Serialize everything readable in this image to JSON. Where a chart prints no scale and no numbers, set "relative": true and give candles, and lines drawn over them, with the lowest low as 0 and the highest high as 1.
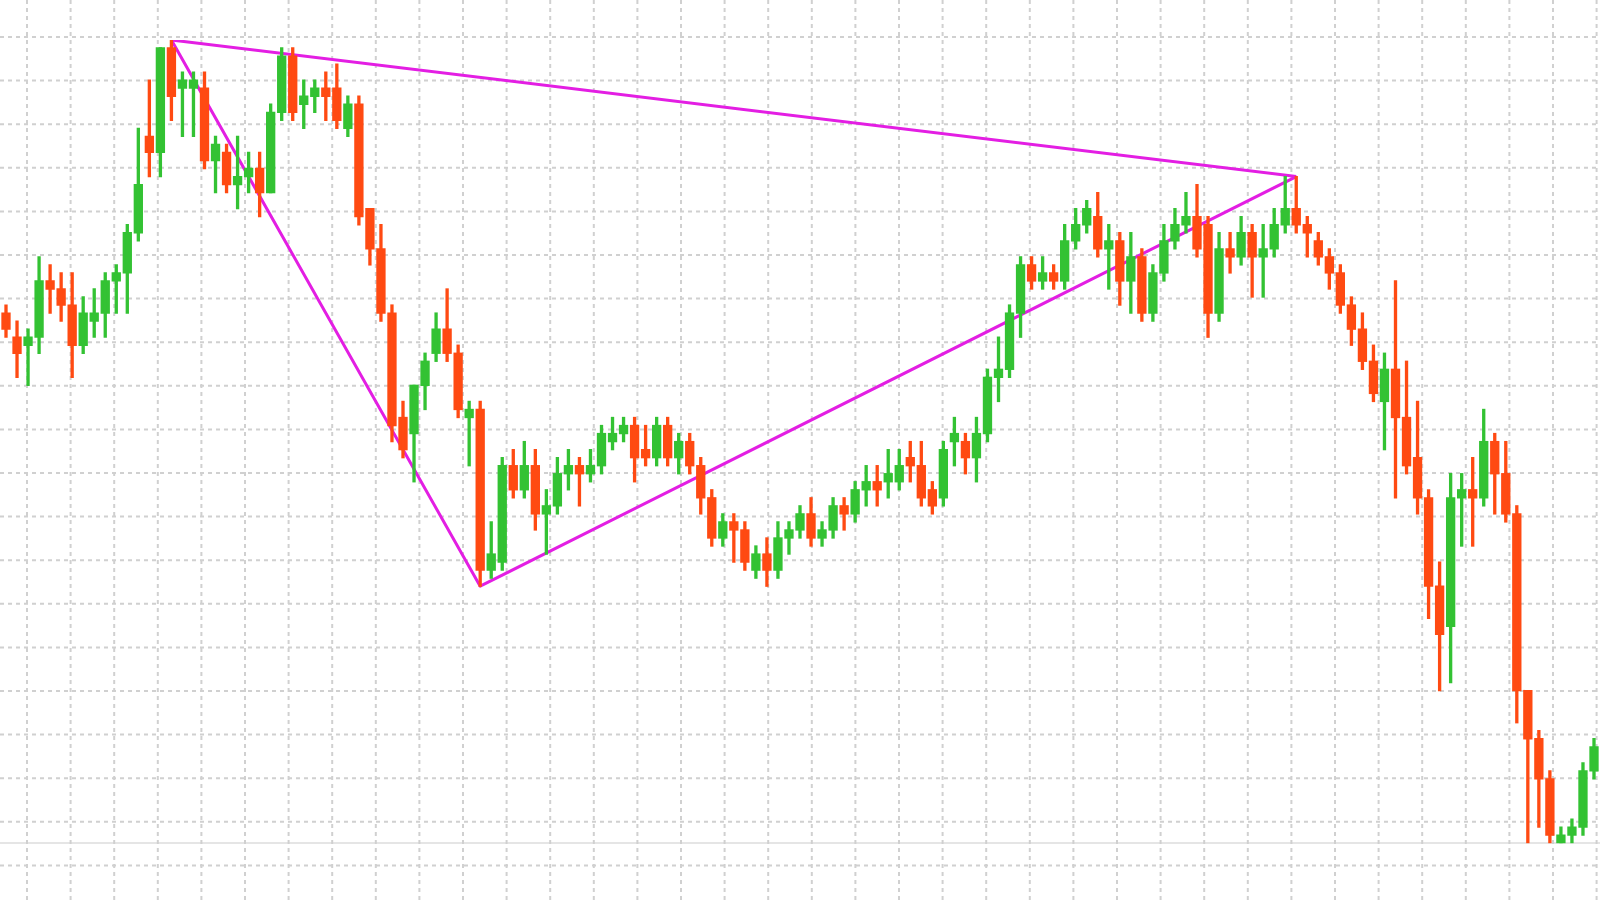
{
  "chart_data": {
    "type": "candlestick",
    "relative": true,
    "grid": true,
    "categories": [
      null,
      null,
      null,
      null,
      null,
      null,
      null,
      null,
      null,
      null,
      null,
      null,
      null,
      null,
      null,
      null,
      null,
      null,
      null,
      null,
      null,
      null,
      null,
      null,
      null,
      null,
      null,
      null,
      null,
      null,
      null,
      null,
      null,
      null,
      null,
      null,
      null,
      null,
      null,
      null,
      null,
      null,
      null,
      null,
      null,
      null,
      null,
      null,
      null,
      null,
      null,
      null,
      null,
      null,
      null,
      null,
      null,
      null,
      null,
      null,
      null,
      null,
      null,
      null,
      null,
      null,
      null,
      null,
      null,
      null,
      null,
      null,
      null,
      null,
      null,
      null,
      null,
      null,
      null,
      null,
      null,
      null,
      null,
      null,
      null,
      null,
      null,
      null,
      null,
      null,
      null,
      null,
      null,
      null,
      null,
      null,
      null,
      null,
      null,
      null,
      null,
      null,
      null,
      null,
      null,
      null,
      null,
      null,
      null,
      null,
      null,
      null,
      null,
      null,
      null,
      null,
      null,
      null,
      null,
      null,
      null,
      null,
      null,
      null,
      null,
      null,
      null,
      null,
      null,
      null,
      null,
      null,
      null,
      null,
      null,
      null,
      null,
      null,
      null,
      null,
      null,
      null,
      null,
      null,
      null
    ],
    "series": [
      {
        "type": "candlestick",
        "ohlc": [
          [
            0.66,
            0.67,
            0.63,
            0.64
          ],
          [
            0.63,
            0.65,
            0.58,
            0.61
          ],
          [
            0.62,
            0.64,
            0.57,
            0.63
          ],
          [
            0.63,
            0.73,
            0.61,
            0.7
          ],
          [
            0.7,
            0.72,
            0.66,
            0.69
          ],
          [
            0.69,
            0.71,
            0.65,
            0.67
          ],
          [
            0.67,
            0.71,
            0.58,
            0.62
          ],
          [
            0.62,
            0.68,
            0.61,
            0.66
          ],
          [
            0.65,
            0.69,
            0.63,
            0.66
          ],
          [
            0.66,
            0.71,
            0.63,
            0.7
          ],
          [
            0.7,
            0.72,
            0.66,
            0.71
          ],
          [
            0.71,
            0.77,
            0.66,
            0.76
          ],
          [
            0.76,
            0.89,
            0.75,
            0.82
          ],
          [
            0.88,
            0.95,
            0.83,
            0.86
          ],
          [
            0.86,
            0.99,
            0.83,
            0.99
          ],
          [
            0.99,
            1.0,
            0.9,
            0.93
          ],
          [
            0.94,
            0.96,
            0.88,
            0.95
          ],
          [
            0.94,
            0.96,
            0.88,
            0.95
          ],
          [
            0.94,
            0.96,
            0.84,
            0.85
          ],
          [
            0.85,
            0.88,
            0.81,
            0.87
          ],
          [
            0.86,
            0.87,
            0.81,
            0.82
          ],
          [
            0.82,
            0.88,
            0.79,
            0.83
          ],
          [
            0.83,
            0.86,
            0.81,
            0.84
          ],
          [
            0.84,
            0.86,
            0.78,
            0.81
          ],
          [
            0.81,
            0.92,
            0.81,
            0.91
          ],
          [
            0.91,
            0.99,
            0.9,
            0.98
          ],
          [
            0.98,
            0.99,
            0.9,
            0.91
          ],
          [
            0.92,
            0.95,
            0.89,
            0.93
          ],
          [
            0.93,
            0.95,
            0.91,
            0.94
          ],
          [
            0.94,
            0.96,
            0.9,
            0.93
          ],
          [
            0.94,
            0.97,
            0.89,
            0.9
          ],
          [
            0.89,
            0.93,
            0.88,
            0.92
          ],
          [
            0.92,
            0.93,
            0.77,
            0.78
          ],
          [
            0.79,
            0.79,
            0.72,
            0.74
          ],
          [
            0.74,
            0.77,
            0.65,
            0.66
          ],
          [
            0.66,
            0.67,
            0.5,
            0.52
          ],
          [
            0.53,
            0.55,
            0.48,
            0.49
          ],
          [
            0.51,
            0.57,
            0.45,
            0.57
          ],
          [
            0.57,
            0.61,
            0.54,
            0.6
          ],
          [
            0.61,
            0.66,
            0.6,
            0.64
          ],
          [
            0.64,
            0.69,
            0.6,
            0.61
          ],
          [
            0.61,
            0.62,
            0.53,
            0.54
          ],
          [
            0.53,
            0.55,
            0.47,
            0.54
          ],
          [
            0.54,
            0.55,
            0.32,
            0.34
          ],
          [
            0.34,
            0.4,
            0.33,
            0.36
          ],
          [
            0.35,
            0.48,
            0.34,
            0.47
          ],
          [
            0.47,
            0.49,
            0.43,
            0.44
          ],
          [
            0.44,
            0.5,
            0.43,
            0.47
          ],
          [
            0.47,
            0.49,
            0.39,
            0.41
          ],
          [
            0.41,
            0.44,
            0.36,
            0.42
          ],
          [
            0.42,
            0.48,
            0.41,
            0.46
          ],
          [
            0.46,
            0.49,
            0.44,
            0.47
          ],
          [
            0.47,
            0.48,
            0.42,
            0.46
          ],
          [
            0.46,
            0.49,
            0.45,
            0.47
          ],
          [
            0.47,
            0.52,
            0.46,
            0.51
          ],
          [
            0.5,
            0.53,
            0.49,
            0.51
          ],
          [
            0.51,
            0.53,
            0.5,
            0.52
          ],
          [
            0.52,
            0.53,
            0.45,
            0.48
          ],
          [
            0.49,
            0.52,
            0.47,
            0.48
          ],
          [
            0.48,
            0.53,
            0.47,
            0.52
          ],
          [
            0.52,
            0.53,
            0.47,
            0.48
          ],
          [
            0.48,
            0.51,
            0.46,
            0.5
          ],
          [
            0.5,
            0.51,
            0.46,
            0.47
          ],
          [
            0.47,
            0.48,
            0.41,
            0.43
          ],
          [
            0.43,
            0.44,
            0.37,
            0.38
          ],
          [
            0.38,
            0.41,
            0.37,
            0.4
          ],
          [
            0.4,
            0.41,
            0.35,
            0.39
          ],
          [
            0.39,
            0.4,
            0.34,
            0.35
          ],
          [
            0.34,
            0.37,
            0.33,
            0.36
          ],
          [
            0.36,
            0.38,
            0.32,
            0.34
          ],
          [
            0.34,
            0.4,
            0.33,
            0.38
          ],
          [
            0.38,
            0.4,
            0.36,
            0.39
          ],
          [
            0.39,
            0.42,
            0.38,
            0.41
          ],
          [
            0.41,
            0.43,
            0.37,
            0.38
          ],
          [
            0.38,
            0.4,
            0.37,
            0.39
          ],
          [
            0.39,
            0.43,
            0.38,
            0.42
          ],
          [
            0.42,
            0.43,
            0.39,
            0.41
          ],
          [
            0.41,
            0.45,
            0.4,
            0.44
          ],
          [
            0.44,
            0.47,
            0.42,
            0.45
          ],
          [
            0.45,
            0.47,
            0.42,
            0.44
          ],
          [
            0.45,
            0.49,
            0.43,
            0.46
          ],
          [
            0.45,
            0.49,
            0.44,
            0.47
          ],
          [
            0.48,
            0.5,
            0.45,
            0.47
          ],
          [
            0.47,
            0.5,
            0.42,
            0.43
          ],
          [
            0.44,
            0.45,
            0.41,
            0.42
          ],
          [
            0.43,
            0.5,
            0.42,
            0.49
          ],
          [
            0.5,
            0.53,
            0.47,
            0.51
          ],
          [
            0.5,
            0.51,
            0.46,
            0.48
          ],
          [
            0.48,
            0.53,
            0.45,
            0.51
          ],
          [
            0.51,
            0.59,
            0.5,
            0.58
          ],
          [
            0.58,
            0.63,
            0.55,
            0.59
          ],
          [
            0.59,
            0.67,
            0.58,
            0.66
          ],
          [
            0.66,
            0.73,
            0.63,
            0.72
          ],
          [
            0.72,
            0.73,
            0.69,
            0.7
          ],
          [
            0.7,
            0.73,
            0.69,
            0.71
          ],
          [
            0.71,
            0.72,
            0.69,
            0.7
          ],
          [
            0.7,
            0.77,
            0.69,
            0.75
          ],
          [
            0.75,
            0.79,
            0.74,
            0.77
          ],
          [
            0.77,
            0.8,
            0.76,
            0.79
          ],
          [
            0.78,
            0.81,
            0.73,
            0.74
          ],
          [
            0.74,
            0.77,
            0.69,
            0.75
          ],
          [
            0.75,
            0.76,
            0.67,
            0.7
          ],
          [
            0.7,
            0.76,
            0.66,
            0.73
          ],
          [
            0.73,
            0.74,
            0.65,
            0.66
          ],
          [
            0.66,
            0.72,
            0.65,
            0.71
          ],
          [
            0.71,
            0.77,
            0.7,
            0.75
          ],
          [
            0.75,
            0.79,
            0.74,
            0.77
          ],
          [
            0.77,
            0.81,
            0.76,
            0.78
          ],
          [
            0.78,
            0.82,
            0.73,
            0.74
          ],
          [
            0.77,
            0.78,
            0.63,
            0.66
          ],
          [
            0.66,
            0.76,
            0.65,
            0.74
          ],
          [
            0.74,
            0.76,
            0.71,
            0.73
          ],
          [
            0.73,
            0.78,
            0.72,
            0.76
          ],
          [
            0.76,
            0.77,
            0.68,
            0.73
          ],
          [
            0.73,
            0.77,
            0.68,
            0.74
          ],
          [
            0.74,
            0.79,
            0.73,
            0.77
          ],
          [
            0.77,
            0.83,
            0.76,
            0.79
          ],
          [
            0.79,
            0.83,
            0.76,
            0.77
          ],
          [
            0.77,
            0.78,
            0.73,
            0.76
          ],
          [
            0.75,
            0.76,
            0.72,
            0.73
          ],
          [
            0.73,
            0.74,
            0.69,
            0.71
          ],
          [
            0.71,
            0.72,
            0.66,
            0.67
          ],
          [
            0.67,
            0.68,
            0.62,
            0.64
          ],
          [
            0.64,
            0.66,
            0.59,
            0.6
          ],
          [
            0.6,
            0.62,
            0.55,
            0.56
          ],
          [
            0.55,
            0.61,
            0.49,
            0.59
          ],
          [
            0.59,
            0.7,
            0.43,
            0.53
          ],
          [
            0.53,
            0.6,
            0.46,
            0.47
          ],
          [
            0.48,
            0.55,
            0.41,
            0.43
          ],
          [
            0.43,
            0.44,
            0.28,
            0.32
          ],
          [
            0.32,
            0.35,
            0.19,
            0.26
          ],
          [
            0.27,
            0.46,
            0.2,
            0.43
          ],
          [
            0.43,
            0.46,
            0.37,
            0.44
          ],
          [
            0.44,
            0.48,
            0.37,
            0.43
          ],
          [
            0.43,
            0.54,
            0.42,
            0.5
          ],
          [
            0.5,
            0.51,
            0.41,
            0.46
          ],
          [
            0.46,
            0.5,
            0.4,
            0.41
          ],
          [
            0.41,
            0.42,
            0.15,
            0.19
          ],
          [
            0.19,
            0.19,
            0.0,
            0.13
          ],
          [
            0.13,
            0.14,
            0.02,
            0.08
          ],
          [
            0.08,
            0.09,
            0.0,
            0.01
          ],
          [
            0.0,
            0.02,
            0.0,
            0.01
          ],
          [
            0.01,
            0.03,
            0.0,
            0.02
          ],
          [
            0.02,
            0.1,
            0.01,
            0.09
          ],
          [
            0.09,
            0.13,
            0.08,
            0.12
          ]
        ],
        "colors": [
          "#ff4a12",
          "#ff4a12",
          "#33c233",
          "#33c233",
          "#ff4a12",
          "#ff4a12",
          "#ff4a12",
          "#33c233",
          "#33c233",
          "#33c233",
          "#33c233",
          "#33c233",
          "#33c233",
          "#ff4a12",
          "#33c233",
          "#ff4a12",
          "#33c233",
          "#33c233",
          "#ff4a12",
          "#33c233",
          "#ff4a12",
          "#33c233",
          "#33c233",
          "#ff4a12",
          "#33c233",
          "#33c233",
          "#ff4a12",
          "#33c233",
          "#33c233",
          "#ff4a12",
          "#ff4a12",
          "#33c233",
          "#ff4a12",
          "#ff4a12",
          "#ff4a12",
          "#ff4a12",
          "#ff4a12",
          "#33c233",
          "#33c233",
          "#33c233",
          "#ff4a12",
          "#ff4a12",
          "#33c233",
          "#ff4a12",
          "#33c233",
          "#33c233",
          "#ff4a12",
          "#33c233",
          "#ff4a12",
          "#33c233",
          "#33c233",
          "#33c233",
          "#ff4a12",
          "#33c233",
          "#33c233",
          "#33c233",
          "#33c233",
          "#ff4a12",
          "#ff4a12",
          "#33c233",
          "#ff4a12",
          "#33c233",
          "#ff4a12",
          "#ff4a12",
          "#ff4a12",
          "#33c233",
          "#ff4a12",
          "#ff4a12",
          "#33c233",
          "#ff4a12",
          "#33c233",
          "#33c233",
          "#33c233",
          "#ff4a12",
          "#33c233",
          "#33c233",
          "#ff4a12",
          "#33c233",
          "#33c233",
          "#ff4a12",
          "#33c233",
          "#33c233",
          "#ff4a12",
          "#ff4a12",
          "#ff4a12",
          "#33c233",
          "#33c233",
          "#ff4a12",
          "#33c233",
          "#33c233",
          "#33c233",
          "#33c233",
          "#33c233",
          "#ff4a12",
          "#33c233",
          "#ff4a12",
          "#33c233",
          "#33c233",
          "#33c233",
          "#ff4a12",
          "#33c233",
          "#ff4a12",
          "#33c233",
          "#ff4a12",
          "#33c233",
          "#33c233",
          "#33c233",
          "#33c233",
          "#ff4a12",
          "#ff4a12",
          "#33c233",
          "#ff4a12",
          "#33c233",
          "#ff4a12",
          "#33c233",
          "#33c233",
          "#33c233",
          "#ff4a12",
          "#ff4a12",
          "#ff4a12",
          "#ff4a12",
          "#ff4a12",
          "#ff4a12",
          "#ff4a12",
          "#ff4a12",
          "#33c233",
          "#ff4a12",
          "#ff4a12",
          "#ff4a12",
          "#ff4a12",
          "#ff4a12",
          "#33c233",
          "#33c233",
          "#ff4a12",
          "#33c233",
          "#ff4a12",
          "#ff4a12",
          "#ff4a12",
          "#ff4a12",
          "#ff4a12",
          "#ff4a12",
          "#33c233",
          "#33c233",
          "#33c233",
          "#33c233"
        ]
      },
      {
        "type": "line",
        "color": "#e31ee3",
        "values": [
          null,
          null,
          null,
          null,
          null,
          null,
          null,
          null,
          null,
          null,
          null,
          null,
          null,
          null,
          null,
          1.0,
          null,
          null,
          null,
          null,
          null,
          null,
          null,
          null,
          null,
          null,
          null,
          null,
          null,
          null,
          null,
          null,
          null,
          null,
          null,
          null,
          null,
          null,
          null,
          null,
          null,
          null,
          null,
          null,
          null,
          null,
          null,
          null,
          null,
          null,
          null,
          null,
          null,
          null,
          null,
          null,
          null,
          null,
          null,
          null,
          null,
          null,
          null,
          null,
          null,
          null,
          null,
          null,
          null,
          null,
          null,
          null,
          null,
          null,
          null,
          null,
          null,
          null,
          null,
          null,
          null,
          null,
          null,
          null,
          null,
          null,
          null,
          null,
          null,
          null,
          null,
          null,
          null,
          null,
          null,
          null,
          null,
          null,
          null,
          null,
          null,
          null,
          null,
          null,
          null,
          null,
          null,
          null,
          null,
          null,
          null,
          null,
          null,
          null,
          null,
          null,
          null,
          0.83,
          null,
          null,
          null,
          null,
          null,
          null,
          null,
          null,
          null,
          null,
          null,
          null,
          null,
          null,
          null,
          null,
          null,
          null,
          null,
          null,
          null,
          null,
          null,
          null,
          null,
          null,
          null
        ]
      },
      {
        "type": "line",
        "color": "#e31ee3",
        "values": [
          null,
          null,
          null,
          null,
          null,
          null,
          null,
          null,
          null,
          null,
          null,
          null,
          null,
          null,
          null,
          1.0,
          null,
          null,
          null,
          null,
          null,
          null,
          null,
          null,
          null,
          null,
          null,
          null,
          null,
          null,
          null,
          null,
          null,
          null,
          null,
          null,
          null,
          null,
          null,
          null,
          null,
          null,
          null,
          0.32,
          null,
          null,
          null,
          null,
          null,
          null,
          null,
          null,
          null,
          null,
          null,
          null,
          null,
          null,
          null,
          null,
          null,
          null,
          null,
          null,
          null,
          null,
          null,
          null,
          null,
          null,
          null,
          null,
          null,
          null,
          null,
          null,
          null,
          null,
          null,
          null,
          null,
          null,
          null,
          null,
          null,
          null,
          null,
          null,
          null,
          null,
          null,
          null,
          null,
          null,
          null,
          null,
          null,
          null,
          null,
          null,
          null,
          null,
          null,
          null,
          null,
          null,
          null,
          null,
          null,
          null,
          null,
          null,
          null,
          null,
          null,
          null,
          null,
          0.83,
          null,
          null,
          null,
          null,
          null,
          null,
          null,
          null,
          null,
          null,
          null,
          null,
          null,
          null,
          null,
          null,
          null,
          null,
          null,
          null,
          null,
          null,
          null,
          null,
          null,
          null,
          null
        ]
      }
    ]
  }
}
